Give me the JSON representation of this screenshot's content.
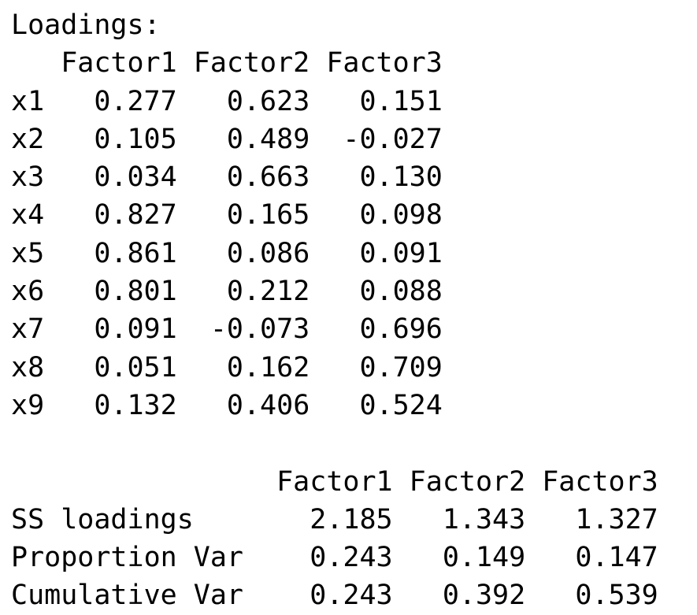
{
  "loadings": {
    "title": "Loadings:",
    "columns": [
      "Factor1",
      "Factor2",
      "Factor3"
    ],
    "rows": [
      {
        "name": "x1",
        "values": [
          "0.277",
          "0.623",
          "0.151"
        ]
      },
      {
        "name": "x2",
        "values": [
          "0.105",
          "0.489",
          "-0.027"
        ]
      },
      {
        "name": "x3",
        "values": [
          "0.034",
          "0.663",
          "0.130"
        ]
      },
      {
        "name": "x4",
        "values": [
          "0.827",
          "0.165",
          "0.098"
        ]
      },
      {
        "name": "x5",
        "values": [
          "0.861",
          "0.086",
          "0.091"
        ]
      },
      {
        "name": "x6",
        "values": [
          "0.801",
          "0.212",
          "0.088"
        ]
      },
      {
        "name": "x7",
        "values": [
          "0.091",
          "-0.073",
          "0.696"
        ]
      },
      {
        "name": "x8",
        "values": [
          "0.051",
          "0.162",
          "0.709"
        ]
      },
      {
        "name": "x9",
        "values": [
          "0.132",
          "0.406",
          "0.524"
        ]
      }
    ]
  },
  "variance": {
    "columns": [
      "Factor1",
      "Factor2",
      "Factor3"
    ],
    "rows": [
      {
        "name": "SS loadings",
        "values": [
          "2.185",
          "1.343",
          "1.327"
        ]
      },
      {
        "name": "Proportion Var",
        "values": [
          "0.243",
          "0.149",
          "0.147"
        ]
      },
      {
        "name": "Cumulative Var",
        "values": [
          "0.243",
          "0.392",
          "0.539"
        ]
      }
    ]
  }
}
